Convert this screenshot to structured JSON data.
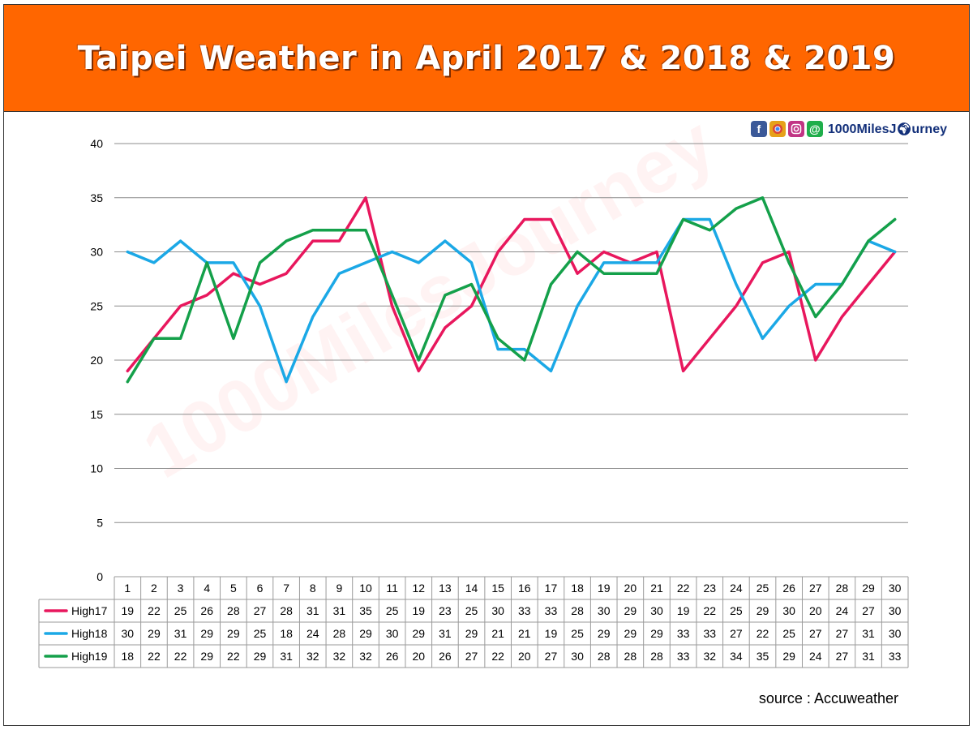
{
  "page": {
    "title": "Taipei Weather in April 2017 & 2018 & 2019",
    "brand_name": "1000MilesJ",
    "brand_name_tail": "urney",
    "social_icons": [
      "facebook-icon",
      "chrome-icon",
      "instagram-icon",
      "line-icon",
      "globe-icon"
    ],
    "watermark": "1000MilesJourney",
    "source": "source : Accuweather",
    "colors": {
      "banner": "#ff6600",
      "facebook": "#3b5998",
      "chrome": "#e6a11a",
      "instagram": "#c13584",
      "line": "#1fae4b",
      "brand": "#13307a"
    }
  },
  "chart_data": {
    "type": "line",
    "categories": [
      "1",
      "2",
      "3",
      "4",
      "5",
      "6",
      "7",
      "8",
      "9",
      "10",
      "11",
      "12",
      "13",
      "14",
      "15",
      "16",
      "17",
      "18",
      "19",
      "20",
      "21",
      "22",
      "23",
      "24",
      "25",
      "26",
      "27",
      "28",
      "29",
      "30"
    ],
    "ylim": [
      0,
      40
    ],
    "yticks": [
      0,
      5,
      10,
      15,
      20,
      25,
      30,
      35,
      40
    ],
    "grid": true,
    "legend": "data-table-left",
    "series": [
      {
        "name": "High17",
        "color": "#e8175d",
        "values": [
          19,
          22,
          25,
          26,
          28,
          27,
          28,
          31,
          31,
          35,
          25,
          19,
          23,
          25,
          30,
          33,
          33,
          28,
          30,
          29,
          30,
          19,
          22,
          25,
          29,
          30,
          20,
          24,
          27,
          30
        ]
      },
      {
        "name": "High18",
        "color": "#1ba8e6",
        "values": [
          30,
          29,
          31,
          29,
          29,
          25,
          18,
          24,
          28,
          29,
          30,
          29,
          31,
          29,
          21,
          21,
          19,
          25,
          29,
          29,
          29,
          33,
          33,
          27,
          22,
          25,
          27,
          27,
          31,
          30
        ]
      },
      {
        "name": "High19",
        "color": "#14a04a",
        "values": [
          18,
          22,
          22,
          29,
          22,
          29,
          31,
          32,
          32,
          32,
          26,
          20,
          26,
          27,
          22,
          20,
          27,
          30,
          28,
          28,
          28,
          33,
          32,
          34,
          35,
          29,
          24,
          27,
          31,
          33
        ]
      }
    ]
  }
}
